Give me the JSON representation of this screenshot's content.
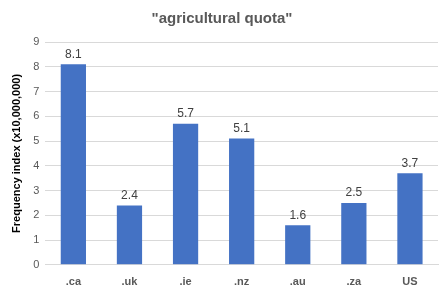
{
  "chart_data": {
    "type": "bar",
    "title": "\"agricultural quota\"",
    "y_label": "Frequency index (x10,000,000)",
    "categories": [
      ".ca",
      ".uk",
      ".ie",
      ".nz",
      ".au",
      ".za",
      "US"
    ],
    "values": [
      8.1,
      2.4,
      5.7,
      5.1,
      1.6,
      2.5,
      3.7
    ],
    "color": "#4472c4",
    "ylim": [
      0,
      9
    ],
    "yticks": [
      0,
      1,
      2,
      3,
      4,
      5,
      6,
      7,
      8,
      9
    ],
    "grid": true,
    "data_labels": true
  }
}
